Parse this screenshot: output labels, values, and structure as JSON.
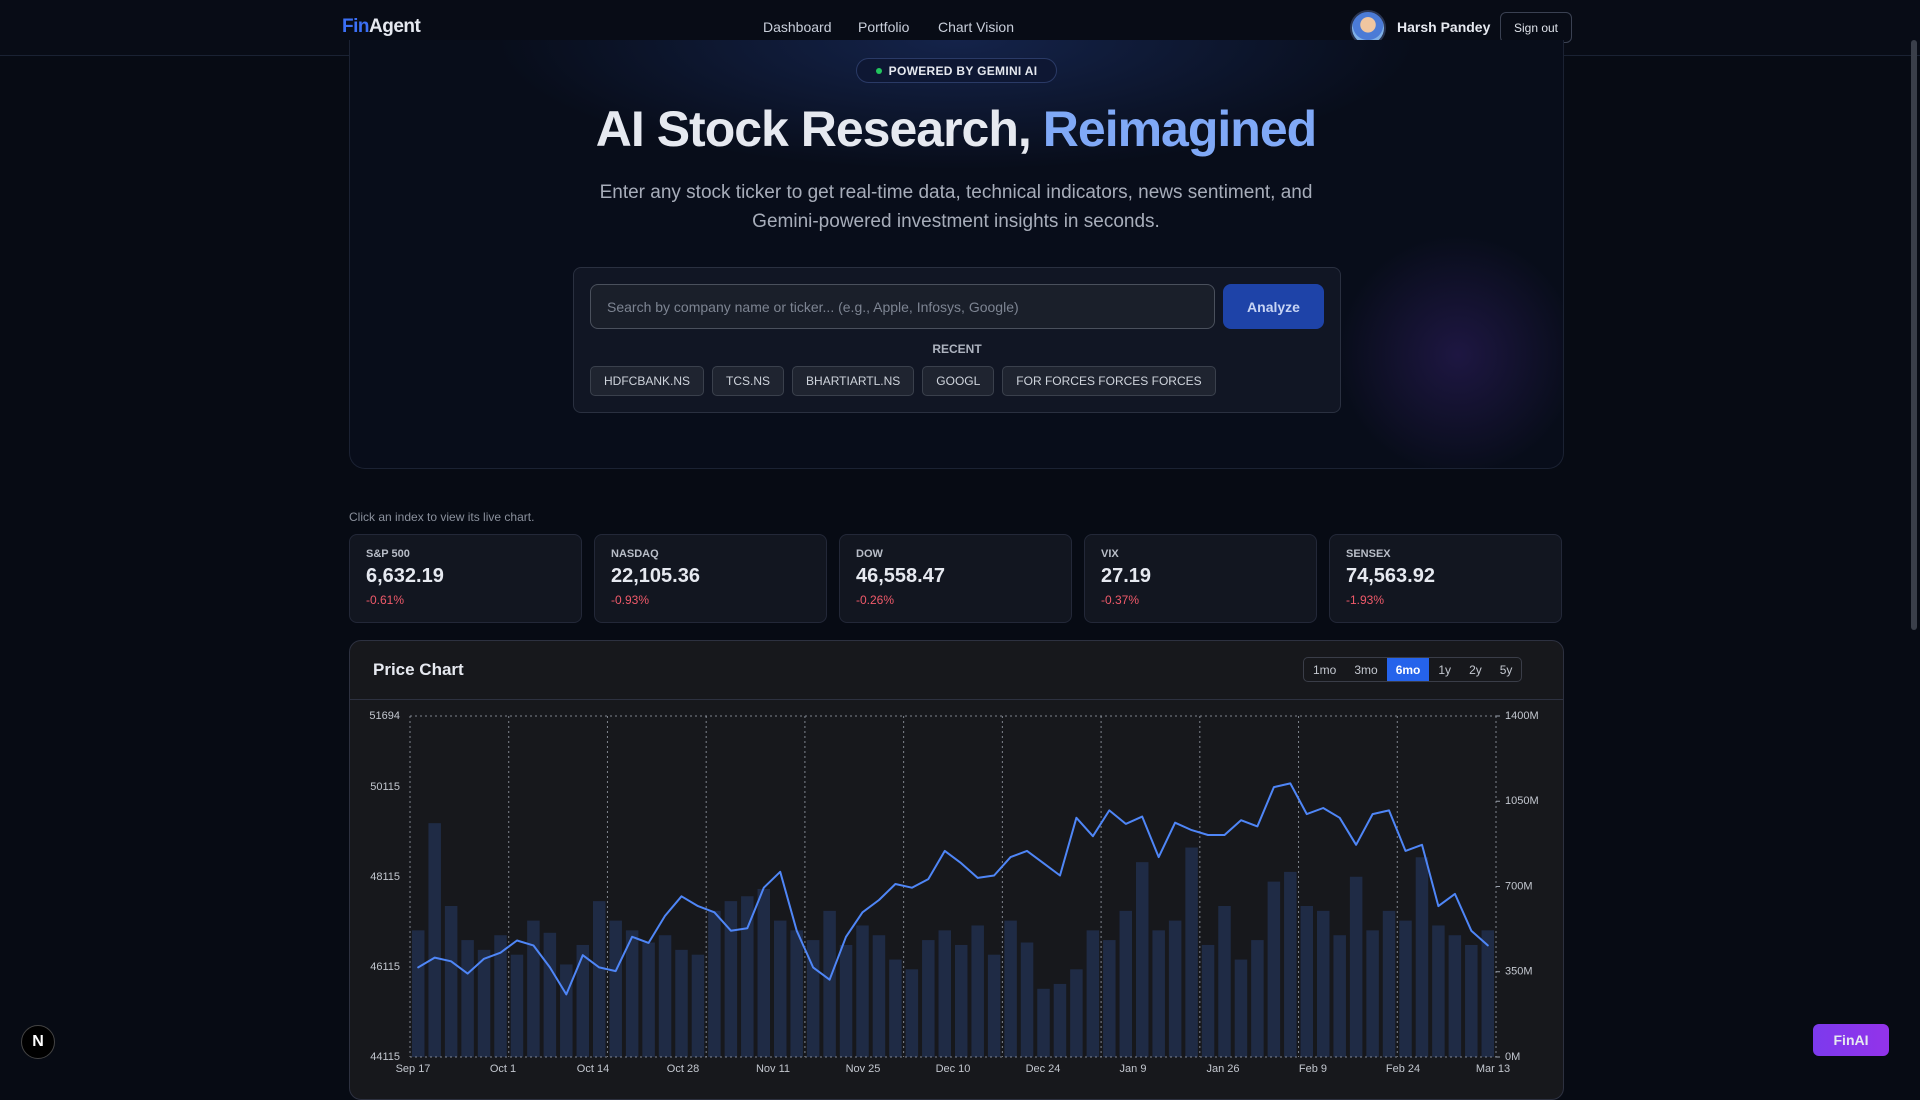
{
  "nav": {
    "brand_prefix": "Fin",
    "brand_suffix": "Agent",
    "links": [
      "Dashboard",
      "Portfolio",
      "Chart Vision"
    ],
    "user_name": "Harsh Pandey",
    "sign_out": "Sign out"
  },
  "hero": {
    "badge": "POWERED BY GEMINI AI",
    "title": "AI Stock Research,",
    "title_highlight": "Reimagined",
    "subtitle": "Enter any stock ticker to get real-time data, technical indicators, news sentiment, and Gemini-powered investment insights in seconds."
  },
  "search": {
    "placeholder": "Search by company name or ticker... (e.g., Apple, Infosys, Google)",
    "button": "Analyze",
    "recent_label": "RECENT",
    "recent": [
      "HDFCBANK.NS",
      "TCS.NS",
      "BHARTIARTL.NS",
      "GOOGL",
      "FOR FORCES FORCES FORCES"
    ]
  },
  "indices": {
    "hint": "Click an index to view its live chart.",
    "items": [
      {
        "name": "S&P 500",
        "value": "6,632.19",
        "change": "-0.61%"
      },
      {
        "name": "NASDAQ",
        "value": "22,105.36",
        "change": "-0.93%"
      },
      {
        "name": "DOW",
        "value": "46,558.47",
        "change": "-0.26%"
      },
      {
        "name": "VIX",
        "value": "27.19",
        "change": "-0.37%"
      },
      {
        "name": "SENSEX",
        "value": "74,563.92",
        "change": "-1.93%"
      }
    ]
  },
  "chart_data": {
    "type": "line",
    "title": "Price Chart",
    "ranges": [
      "1mo",
      "3mo",
      "6mo",
      "1y",
      "2y",
      "5y"
    ],
    "active_range": "6mo",
    "x_labels": [
      "Sep 17",
      "Oct 1",
      "Oct 14",
      "Oct 28",
      "Nov 11",
      "Nov 25",
      "Dec 10",
      "Dec 24",
      "Jan 9",
      "Jan 26",
      "Feb 9",
      "Feb 24",
      "Mar 13"
    ],
    "ylim": [
      44115,
      51694
    ],
    "yticks": [
      44115,
      46115,
      48115,
      50115,
      51694
    ],
    "y2lim": [
      0,
      1400
    ],
    "y2ticks": [
      {
        "value": 0,
        "label": "0M"
      },
      {
        "value": 350,
        "label": "350M"
      },
      {
        "value": 700,
        "label": "700M"
      },
      {
        "value": 1050,
        "label": "1050M"
      },
      {
        "value": 1400,
        "label": "1400M"
      }
    ],
    "series": [
      {
        "type": "line",
        "color": "#4f86f7",
        "values": [
          46106,
          46324,
          46242,
          45969,
          46297,
          46433,
          46705,
          46596,
          46106,
          45506,
          46378,
          46106,
          46024,
          46787,
          46651,
          47251,
          47687,
          47469,
          47332,
          46923,
          46978,
          47878,
          48232,
          46923,
          46106,
          45833,
          46787,
          47332,
          47605,
          47959,
          47878,
          48068,
          48695,
          48423,
          48096,
          48150,
          48559,
          48695,
          48423,
          48150,
          49431,
          49023,
          49595,
          49295,
          49459,
          48559,
          49322,
          49159,
          49050,
          49050,
          49377,
          49241,
          50113,
          50195,
          49513,
          49649,
          49431,
          48832,
          49513,
          49595,
          48695,
          48832,
          47469,
          47741,
          46923,
          46596
        ]
      },
      {
        "type": "bar",
        "axis": "y2",
        "color": "#1f2b45",
        "values": [
          520,
          960,
          620,
          480,
          440,
          500,
          420,
          560,
          510,
          380,
          460,
          640,
          560,
          520,
          470,
          500,
          440,
          420,
          600,
          640,
          660,
          690,
          560,
          520,
          480,
          600,
          460,
          540,
          500,
          400,
          360,
          480,
          520,
          460,
          540,
          420,
          560,
          470,
          280,
          300,
          360,
          520,
          480,
          600,
          800,
          520,
          560,
          860,
          460,
          620,
          400,
          480,
          720,
          760,
          620,
          600,
          500,
          740,
          520,
          600,
          560,
          820,
          540,
          500,
          460,
          520
        ]
      }
    ]
  }
}
